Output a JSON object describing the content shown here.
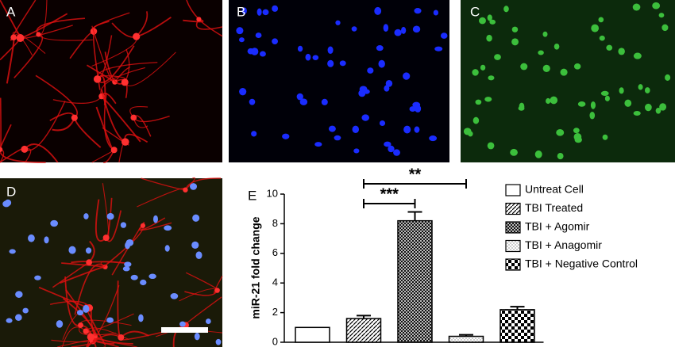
{
  "panels": [
    "A",
    "B",
    "C",
    "D",
    "E"
  ],
  "chart_data": {
    "type": "bar",
    "y_label": "miR-21 fold change",
    "categories": [
      "Untreat Cell",
      "TBI Treated",
      "TBI + Agomir",
      "TBI + Anagomir",
      "TBI + Negative Control"
    ],
    "values": [
      1.0,
      1.6,
      8.2,
      0.4,
      2.2
    ],
    "errors": [
      null,
      0.2,
      0.6,
      0.1,
      0.2
    ],
    "ylim": [
      0,
      10
    ],
    "yticks": [
      0,
      2,
      4,
      6,
      8,
      10
    ],
    "annotations": [
      "***",
      "**"
    ]
  }
}
